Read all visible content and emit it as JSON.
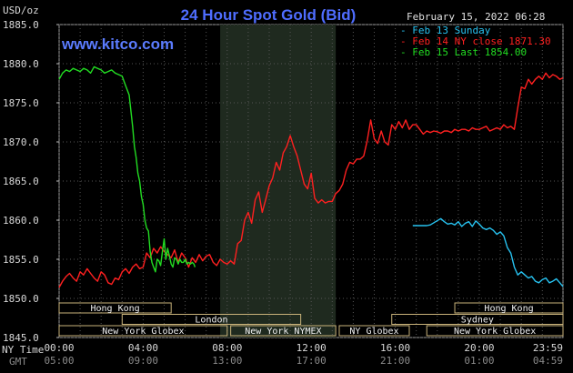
{
  "chart_data": {
    "type": "line",
    "title": "24 Hour Spot Gold (Bid)",
    "subtitle": "www.kitco.com",
    "date_stamp": "February 15, 2022 06:28",
    "ylabel": "USD/oz",
    "ylim": [
      1845,
      1885
    ],
    "xlim": [
      0,
      1439
    ],
    "y_ticks": [
      "1885.0",
      "1880.0",
      "1875.0",
      "1870.0",
      "1865.0",
      "1860.0",
      "1855.0",
      "1850.0",
      "1845.0"
    ],
    "y_tick_values": [
      1885,
      1880,
      1875,
      1870,
      1865,
      1860,
      1855,
      1850,
      1845
    ],
    "x_ticks": [
      {
        "x": 0,
        "ny": "00:00",
        "gmt": "05:00"
      },
      {
        "x": 240,
        "ny": "04:00",
        "gmt": "09:00"
      },
      {
        "x": 480,
        "ny": "08:00",
        "gmt": "13:00"
      },
      {
        "x": 720,
        "ny": "12:00",
        "gmt": "17:00"
      },
      {
        "x": 960,
        "ny": "16:00",
        "gmt": "21:00"
      },
      {
        "x": 1200,
        "ny": "20:00",
        "gmt": "01:00"
      },
      {
        "x": 1439,
        "ny": "23:59",
        "gmt": "04:59"
      }
    ],
    "x_axis_labels": {
      "ny": "NY Time",
      "gmt": "GMT"
    },
    "shaded_region": [
      460,
      790
    ],
    "grid": true,
    "legend_position": "top-right",
    "series": [
      {
        "name": "Feb 13 Sunday",
        "color": "#27c2f0",
        "x": [
          1010,
          1020,
          1035,
          1050,
          1060,
          1075,
          1090,
          1100,
          1110,
          1120,
          1130,
          1140,
          1150,
          1160,
          1170,
          1180,
          1190,
          1200,
          1210,
          1220,
          1230,
          1240,
          1250,
          1260,
          1270,
          1280,
          1290,
          1300,
          1310,
          1320,
          1330,
          1340,
          1350,
          1360,
          1370,
          1380,
          1390,
          1400,
          1410,
          1420,
          1430,
          1439
        ],
        "values": [
          1859.3,
          1859.3,
          1859.3,
          1859.3,
          1859.4,
          1859.8,
          1860.2,
          1859.8,
          1859.5,
          1859.6,
          1859.4,
          1859.8,
          1859.2,
          1859.6,
          1859.8,
          1859.2,
          1859.9,
          1859.5,
          1859.0,
          1858.8,
          1859.0,
          1858.7,
          1858.2,
          1858.5,
          1858.0,
          1856.5,
          1855.8,
          1854.0,
          1853.0,
          1853.4,
          1853.0,
          1852.6,
          1852.8,
          1852.2,
          1852.0,
          1852.4,
          1852.6,
          1852.0,
          1852.2,
          1852.5,
          1852.0,
          1851.5
        ]
      },
      {
        "name": "Feb 14 NY close 1871.30",
        "color": "#ff2020",
        "x": [
          0,
          10,
          20,
          30,
          40,
          50,
          60,
          70,
          80,
          90,
          100,
          110,
          120,
          130,
          140,
          150,
          160,
          170,
          180,
          190,
          200,
          210,
          220,
          230,
          240,
          250,
          260,
          270,
          280,
          290,
          300,
          310,
          320,
          330,
          340,
          350,
          360,
          370,
          380,
          390,
          400,
          410,
          420,
          430,
          440,
          450,
          460,
          470,
          480,
          490,
          500,
          510,
          520,
          530,
          540,
          550,
          560,
          570,
          580,
          590,
          600,
          610,
          620,
          630,
          640,
          650,
          660,
          670,
          680,
          690,
          700,
          710,
          720,
          730,
          740,
          750,
          760,
          770,
          780,
          790,
          800,
          810,
          820,
          830,
          840,
          850,
          860,
          870,
          880,
          890,
          900,
          910,
          920,
          930,
          940,
          950,
          960,
          970,
          980,
          990,
          1000,
          1010,
          1020,
          1030,
          1040,
          1050,
          1060,
          1070,
          1080,
          1090,
          1100,
          1110,
          1120,
          1130,
          1140,
          1150,
          1160,
          1170,
          1180,
          1190,
          1200,
          1210,
          1220,
          1230,
          1240,
          1250,
          1260,
          1270,
          1280,
          1290,
          1300,
          1310,
          1320,
          1330,
          1340,
          1350,
          1360,
          1370,
          1380,
          1390,
          1400,
          1410,
          1420,
          1430,
          1439
        ],
        "values": [
          1851.4,
          1852.2,
          1852.8,
          1853.2,
          1852.6,
          1852.2,
          1853.4,
          1853.0,
          1853.8,
          1853.2,
          1852.6,
          1852.2,
          1853.4,
          1853.0,
          1852.0,
          1851.8,
          1852.6,
          1852.4,
          1853.4,
          1853.8,
          1853.2,
          1854.0,
          1854.4,
          1853.8,
          1854.0,
          1855.8,
          1855.2,
          1856.4,
          1855.8,
          1856.6,
          1856.0,
          1855.6,
          1855.2,
          1856.2,
          1854.6,
          1855.8,
          1855.2,
          1854.0,
          1855.2,
          1854.6,
          1855.6,
          1854.8,
          1855.4,
          1855.6,
          1854.6,
          1854.2,
          1855.0,
          1854.6,
          1854.4,
          1854.8,
          1854.4,
          1857.0,
          1857.4,
          1860.0,
          1861.0,
          1859.6,
          1862.6,
          1863.6,
          1861.0,
          1862.6,
          1864.4,
          1865.4,
          1867.4,
          1866.4,
          1868.6,
          1869.4,
          1870.8,
          1869.4,
          1868.2,
          1866.4,
          1864.6,
          1864.0,
          1866.0,
          1862.8,
          1862.2,
          1862.6,
          1862.2,
          1862.4,
          1862.4,
          1863.4,
          1863.8,
          1864.6,
          1866.4,
          1867.4,
          1867.2,
          1867.8,
          1867.8,
          1868.2,
          1870.2,
          1872.8,
          1870.4,
          1869.8,
          1871.4,
          1870.0,
          1869.6,
          1872.2,
          1871.6,
          1872.6,
          1871.8,
          1872.8,
          1871.6,
          1872.2,
          1872.2,
          1871.6,
          1871.0,
          1871.4,
          1871.2,
          1871.4,
          1871.3,
          1871.1,
          1871.4,
          1871.4,
          1871.2,
          1871.6,
          1871.4,
          1871.6,
          1871.6,
          1871.4,
          1871.8,
          1871.6,
          1871.6,
          1871.8,
          1872.0,
          1871.4,
          1871.6,
          1871.8,
          1871.6,
          1872.2,
          1871.8,
          1872.0,
          1871.6,
          1874.4,
          1877.0,
          1876.8,
          1878.0,
          1877.4,
          1878.0,
          1878.4,
          1878.0,
          1878.8,
          1878.2,
          1878.6,
          1878.4,
          1878.0,
          1878.2
        ]
      },
      {
        "name": "Feb 15 Last 1854.00",
        "color": "#22dd22",
        "x": [
          0,
          5,
          10,
          20,
          30,
          40,
          50,
          60,
          70,
          80,
          90,
          100,
          110,
          120,
          130,
          140,
          150,
          160,
          170,
          180,
          190,
          200,
          205,
          210,
          215,
          220,
          225,
          230,
          235,
          240,
          245,
          250,
          255,
          260,
          265,
          270,
          275,
          280,
          285,
          290,
          295,
          300,
          305,
          310,
          315,
          320,
          325,
          330,
          335,
          340,
          345,
          350,
          355,
          360,
          365,
          370,
          375,
          380,
          385,
          388
        ],
        "values": [
          1878.0,
          1878.4,
          1878.8,
          1879.2,
          1879.0,
          1879.4,
          1879.2,
          1879.0,
          1879.4,
          1879.2,
          1878.8,
          1879.6,
          1879.4,
          1879.2,
          1878.8,
          1879.0,
          1879.2,
          1878.8,
          1878.6,
          1878.4,
          1877.2,
          1876.0,
          1874.0,
          1872.0,
          1869.4,
          1868.0,
          1866.0,
          1865.0,
          1863.0,
          1862.0,
          1860.0,
          1859.0,
          1858.6,
          1856.0,
          1854.6,
          1854.0,
          1853.4,
          1855.0,
          1854.8,
          1854.2,
          1856.0,
          1857.6,
          1855.0,
          1856.4,
          1855.4,
          1854.4,
          1854.0,
          1855.2,
          1855.0,
          1854.4,
          1855.0,
          1854.6,
          1854.6,
          1855.0,
          1854.4,
          1854.6,
          1854.4,
          1854.6,
          1854.4,
          1854.0
        ]
      }
    ],
    "sessions": [
      {
        "label": "Hong Kong",
        "x0": 0,
        "x1": 320,
        "row": 0
      },
      {
        "label": "Hong Kong",
        "x0": 1130,
        "x1": 1439,
        "row": 0
      },
      {
        "label": "London",
        "x0": 180,
        "x1": 690,
        "row": 1
      },
      {
        "label": "Sydney",
        "x0": 950,
        "x1": 1439,
        "row": 1
      },
      {
        "label": "New York Globex",
        "x0": 0,
        "x1": 480,
        "row": 2
      },
      {
        "label": "New York NYMEX",
        "x0": 490,
        "x1": 790,
        "row": 2
      },
      {
        "label": "NY Globex",
        "x0": 800,
        "x1": 1000,
        "row": 2
      },
      {
        "label": "New York Globex",
        "x0": 1050,
        "x1": 1439,
        "row": 2
      }
    ]
  }
}
